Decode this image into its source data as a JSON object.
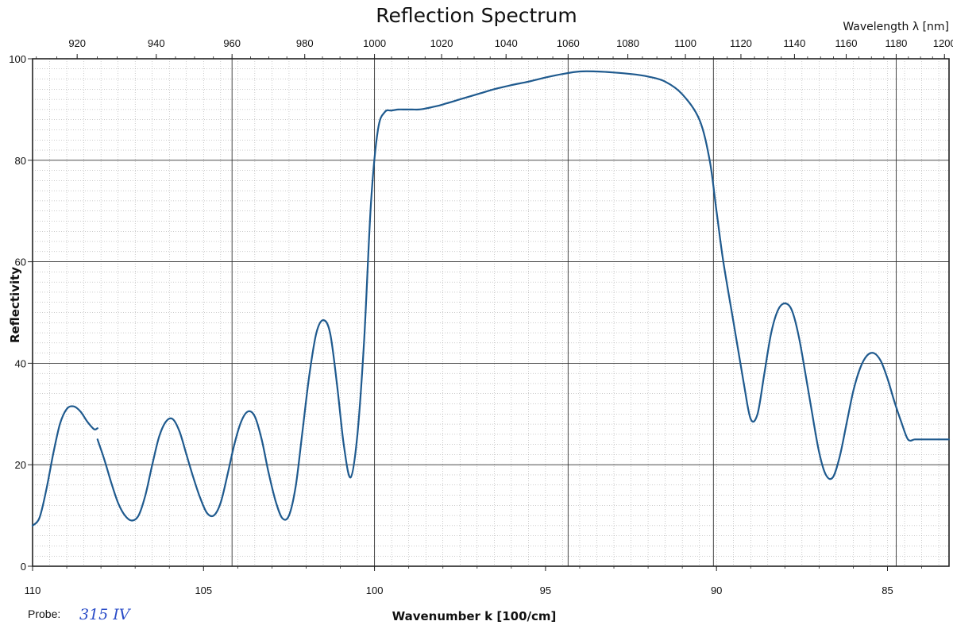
{
  "chart_data": {
    "type": "line",
    "title": "Reflection Spectrum",
    "xlabel": "Wavenumber k [100/cm]",
    "ylabel": "Reflectivity",
    "x2label": "Wavelength λ [nm]",
    "xlim": [
      110,
      83.2
    ],
    "ylim": [
      0,
      100
    ],
    "x_ticks": [
      "110",
      "105",
      "100",
      "95",
      "90",
      "85"
    ],
    "y_ticks": [
      "0",
      "20",
      "40",
      "60",
      "80",
      "100"
    ],
    "x2_ticks": [
      "920",
      "940",
      "960",
      "980",
      "1000",
      "1020",
      "1040",
      "1060",
      "1080",
      "1100",
      "1120",
      "1140",
      "1160",
      "1180",
      "1200"
    ],
    "grid": true,
    "line_color": "#1f5a8e",
    "series": [
      {
        "segments": [
          {
            "x": [
              110.0,
              109.8,
              109.6,
              109.4,
              109.2,
              109.0,
              108.8,
              108.6,
              108.4,
              108.2,
              108.1
            ],
            "y": [
              8,
              9.5,
              15,
              22,
              28,
              31,
              31.5,
              30.5,
              28.5,
              27,
              27.2
            ]
          },
          {
            "x": [
              108.1,
              107.9,
              107.7,
              107.5,
              107.3,
              107.1,
              106.9,
              106.7,
              106.5,
              106.3,
              106.1,
              105.9,
              105.7,
              105.5,
              105.3,
              105.1,
              104.9,
              104.7,
              104.5,
              104.3,
              104.1,
              103.9,
              103.7,
              103.5,
              103.3,
              103.1,
              102.9,
              102.7,
              102.5,
              102.3,
              102.1,
              101.9,
              101.7,
              101.5,
              101.3,
              101.1,
              100.9,
              100.7,
              100.5,
              100.3,
              100.1,
              99.9,
              99.7,
              99.5,
              99.3,
              99.1,
              98.9,
              98.7,
              98.5,
              98.3,
              98.1,
              97.9,
              97.5,
              97.0,
              96.5,
              96.0,
              95.5,
              95.0,
              94.5,
              94.0,
              93.5,
              93.0,
              92.5,
              92.0,
              91.5,
              91.0,
              90.5,
              90.2,
              90.0,
              89.8,
              89.5,
              89.2,
              89.0,
              88.8,
              88.6,
              88.4,
              88.2,
              88.0,
              87.8,
              87.6,
              87.4,
              87.2,
              87.0,
              86.8,
              86.6,
              86.4,
              86.2,
              86.0,
              85.8,
              85.6,
              85.4,
              85.2,
              85.0,
              84.8,
              84.6,
              84.4,
              84.2,
              84.0,
              83.8,
              83.6,
              83.4,
              83.2
            ],
            "y": [
              25,
              21,
              16.5,
              12.5,
              10,
              9,
              10,
              14,
              20,
              25.5,
              28.5,
              29,
              26.5,
              22,
              17.5,
              13.5,
              10.5,
              10,
              12.5,
              18,
              24,
              28.5,
              30.5,
              29.5,
              25,
              18.5,
              13,
              9.5,
              10,
              16,
              27,
              38,
              46,
              48.5,
              46,
              36,
              24,
              17.5,
              26,
              45,
              72,
              86,
              89.5,
              89.8,
              90,
              90,
              90,
              90,
              90.2,
              90.5,
              90.8,
              91.2,
              92,
              93,
              94,
              94.8,
              95.5,
              96.3,
              97,
              97.5,
              97.5,
              97.3,
              97,
              96.5,
              95.5,
              93,
              88,
              80,
              70,
              60,
              48,
              36,
              29,
              30,
              38,
              46,
              50.5,
              51.8,
              50.5,
              45.5,
              38,
              30,
              22.5,
              18,
              17.5,
              21.5,
              28,
              34.5,
              39,
              41.5,
              42,
              40.5,
              37,
              32.5,
              28.5,
              25,
              25,
              25,
              25,
              25,
              25,
              25
            ]
          }
        ]
      }
    ]
  },
  "annotations": {
    "probe_label": "Probe:",
    "probe_value": "315 IV"
  }
}
